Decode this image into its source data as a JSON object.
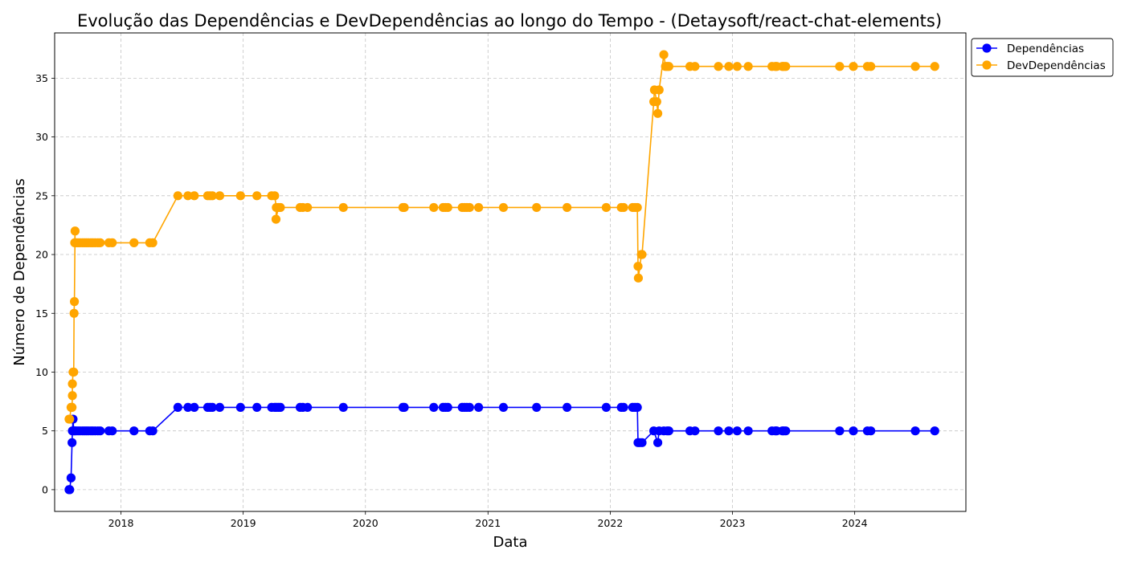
{
  "chart_data": {
    "type": "line",
    "title": "Evolução das Dependências e DevDependências ao longo do Tempo - (Detaysoft/react-chat-elements)",
    "xlabel": "Data",
    "ylabel": "Número de Dependências",
    "x_ticks": [
      "2018",
      "2019",
      "2020",
      "2021",
      "2022",
      "2023",
      "2024"
    ],
    "y_ticks": [
      "0",
      "5",
      "10",
      "15",
      "20",
      "25",
      "30",
      "35"
    ],
    "xlim": [
      "2017-06-17",
      "2024-11-28"
    ],
    "ylim": [
      -1.85,
      38.85
    ],
    "grid": true,
    "legend_position": "upper right, outside plot",
    "series": [
      {
        "name": "Dependências",
        "color": "#0000ff",
        "points": [
          [
            "2017-07-30",
            0
          ],
          [
            "2017-08-01",
            0
          ],
          [
            "2017-08-05",
            1
          ],
          [
            "2017-08-08",
            4
          ],
          [
            "2017-08-09",
            5
          ],
          [
            "2017-08-11",
            6
          ],
          [
            "2017-08-13",
            5
          ],
          [
            "2017-08-16",
            5
          ],
          [
            "2017-08-20",
            5
          ],
          [
            "2017-08-26",
            5
          ],
          [
            "2017-09-01",
            5
          ],
          [
            "2017-09-08",
            5
          ],
          [
            "2017-09-14",
            5
          ],
          [
            "2017-09-20",
            5
          ],
          [
            "2017-09-26",
            5
          ],
          [
            "2017-10-03",
            5
          ],
          [
            "2017-10-09",
            5
          ],
          [
            "2017-10-16",
            5
          ],
          [
            "2017-10-24",
            5
          ],
          [
            "2017-10-31",
            5
          ],
          [
            "2017-11-26",
            5
          ],
          [
            "2017-12-06",
            5
          ],
          [
            "2018-02-09",
            5
          ],
          [
            "2018-03-28",
            5
          ],
          [
            "2018-04-06",
            5
          ],
          [
            "2018-06-20",
            7
          ],
          [
            "2018-07-20",
            7
          ],
          [
            "2018-08-08",
            7
          ],
          [
            "2018-09-17",
            7
          ],
          [
            "2018-09-24",
            7
          ],
          [
            "2018-10-01",
            7
          ],
          [
            "2018-10-23",
            7
          ],
          [
            "2018-12-24",
            7
          ],
          [
            "2019-02-11",
            7
          ],
          [
            "2019-03-27",
            7
          ],
          [
            "2019-04-05",
            7
          ],
          [
            "2019-04-10",
            7
          ],
          [
            "2019-04-16",
            7
          ],
          [
            "2019-04-22",
            7
          ],
          [
            "2019-06-20",
            7
          ],
          [
            "2019-06-28",
            7
          ],
          [
            "2019-07-12",
            7
          ],
          [
            "2019-10-27",
            7
          ],
          [
            "2020-04-22",
            7
          ],
          [
            "2020-04-26",
            7
          ],
          [
            "2020-07-23",
            7
          ],
          [
            "2020-08-20",
            7
          ],
          [
            "2020-08-27",
            7
          ],
          [
            "2020-09-03",
            7
          ],
          [
            "2020-10-16",
            7
          ],
          [
            "2020-10-23",
            7
          ],
          [
            "2020-10-30",
            7
          ],
          [
            "2020-11-07",
            7
          ],
          [
            "2020-12-04",
            7
          ],
          [
            "2021-02-16",
            7
          ],
          [
            "2021-05-26",
            7
          ],
          [
            "2021-08-25",
            7
          ],
          [
            "2021-12-20",
            7
          ],
          [
            "2022-02-03",
            7
          ],
          [
            "2022-02-10",
            7
          ],
          [
            "2022-03-09",
            7
          ],
          [
            "2022-03-16",
            7
          ],
          [
            "2022-03-23",
            7
          ],
          [
            "2022-03-25",
            4
          ],
          [
            "2022-03-30",
            4
          ],
          [
            "2022-04-06",
            4
          ],
          [
            "2022-05-11",
            5
          ],
          [
            "2022-05-23",
            4
          ],
          [
            "2022-05-27",
            5
          ],
          [
            "2022-06-10",
            5
          ],
          [
            "2022-06-20",
            5
          ],
          [
            "2022-06-25",
            5
          ],
          [
            "2022-08-27",
            5
          ],
          [
            "2022-09-11",
            5
          ],
          [
            "2022-11-20",
            5
          ],
          [
            "2022-12-21",
            5
          ],
          [
            "2023-01-15",
            5
          ],
          [
            "2023-02-17",
            5
          ],
          [
            "2023-04-29",
            5
          ],
          [
            "2023-05-09",
            5
          ],
          [
            "2023-05-13",
            5
          ],
          [
            "2023-05-30",
            5
          ],
          [
            "2023-06-03",
            5
          ],
          [
            "2023-06-09",
            5
          ],
          [
            "2023-11-17",
            5
          ],
          [
            "2023-12-28",
            5
          ],
          [
            "2024-02-08",
            5
          ],
          [
            "2024-02-18",
            5
          ],
          [
            "2024-06-30",
            5
          ],
          [
            "2024-08-27",
            5
          ]
        ]
      },
      {
        "name": "DevDependências",
        "color": "#ffa500",
        "points": [
          [
            "2017-07-30",
            6
          ],
          [
            "2017-08-01",
            6
          ],
          [
            "2017-08-05",
            7
          ],
          [
            "2017-08-08",
            7
          ],
          [
            "2017-08-09",
            8
          ],
          [
            "2017-08-09",
            9
          ],
          [
            "2017-08-11",
            10
          ],
          [
            "2017-08-13",
            10
          ],
          [
            "2017-08-14",
            15
          ],
          [
            "2017-08-15",
            16
          ],
          [
            "2017-08-17",
            22
          ],
          [
            "2017-08-16",
            21
          ],
          [
            "2017-08-20",
            21
          ],
          [
            "2017-08-26",
            21
          ],
          [
            "2017-09-01",
            21
          ],
          [
            "2017-09-08",
            21
          ],
          [
            "2017-09-14",
            21
          ],
          [
            "2017-09-20",
            21
          ],
          [
            "2017-09-26",
            21
          ],
          [
            "2017-10-03",
            21
          ],
          [
            "2017-10-09",
            21
          ],
          [
            "2017-10-16",
            21
          ],
          [
            "2017-10-24",
            21
          ],
          [
            "2017-10-31",
            21
          ],
          [
            "2017-11-26",
            21
          ],
          [
            "2017-12-06",
            21
          ],
          [
            "2018-02-09",
            21
          ],
          [
            "2018-03-28",
            21
          ],
          [
            "2018-04-06",
            21
          ],
          [
            "2018-06-20",
            25
          ],
          [
            "2018-07-20",
            25
          ],
          [
            "2018-08-08",
            25
          ],
          [
            "2018-09-17",
            25
          ],
          [
            "2018-09-24",
            25
          ],
          [
            "2018-10-01",
            25
          ],
          [
            "2018-10-23",
            25
          ],
          [
            "2018-12-24",
            25
          ],
          [
            "2019-02-11",
            25
          ],
          [
            "2019-03-27",
            25
          ],
          [
            "2019-04-05",
            25
          ],
          [
            "2019-04-10",
            24
          ],
          [
            "2019-04-09",
            23
          ],
          [
            "2019-04-16",
            24
          ],
          [
            "2019-04-22",
            24
          ],
          [
            "2019-06-20",
            24
          ],
          [
            "2019-06-28",
            24
          ],
          [
            "2019-07-12",
            24
          ],
          [
            "2019-10-27",
            24
          ],
          [
            "2020-04-22",
            24
          ],
          [
            "2020-04-26",
            24
          ],
          [
            "2020-07-23",
            24
          ],
          [
            "2020-08-20",
            24
          ],
          [
            "2020-08-27",
            24
          ],
          [
            "2020-09-03",
            24
          ],
          [
            "2020-10-16",
            24
          ],
          [
            "2020-10-23",
            24
          ],
          [
            "2020-10-30",
            24
          ],
          [
            "2020-11-07",
            24
          ],
          [
            "2020-12-04",
            24
          ],
          [
            "2021-02-16",
            24
          ],
          [
            "2021-05-26",
            24
          ],
          [
            "2021-08-25",
            24
          ],
          [
            "2021-12-20",
            24
          ],
          [
            "2022-02-03",
            24
          ],
          [
            "2022-02-10",
            24
          ],
          [
            "2022-03-09",
            24
          ],
          [
            "2022-03-16",
            24
          ],
          [
            "2022-03-23",
            24
          ],
          [
            "2022-03-25",
            19
          ],
          [
            "2022-03-26",
            18
          ],
          [
            "2022-04-04",
            20
          ],
          [
            "2022-04-06",
            20
          ],
          [
            "2022-05-11",
            33
          ],
          [
            "2022-05-13",
            34
          ],
          [
            "2022-05-20",
            33
          ],
          [
            "2022-05-23",
            32
          ],
          [
            "2022-05-27",
            34
          ],
          [
            "2022-06-10",
            37
          ],
          [
            "2022-06-15",
            36
          ],
          [
            "2022-06-20",
            36
          ],
          [
            "2022-06-25",
            36
          ],
          [
            "2022-08-27",
            36
          ],
          [
            "2022-09-11",
            36
          ],
          [
            "2022-11-20",
            36
          ],
          [
            "2022-12-21",
            36
          ],
          [
            "2023-01-15",
            36
          ],
          [
            "2023-02-17",
            36
          ],
          [
            "2023-04-29",
            36
          ],
          [
            "2023-05-09",
            36
          ],
          [
            "2023-05-13",
            36
          ],
          [
            "2023-05-30",
            36
          ],
          [
            "2023-06-03",
            36
          ],
          [
            "2023-06-09",
            36
          ],
          [
            "2023-11-17",
            36
          ],
          [
            "2023-12-28",
            36
          ],
          [
            "2024-02-08",
            36
          ],
          [
            "2024-02-18",
            36
          ],
          [
            "2024-06-30",
            36
          ],
          [
            "2024-08-27",
            36
          ]
        ]
      }
    ]
  }
}
